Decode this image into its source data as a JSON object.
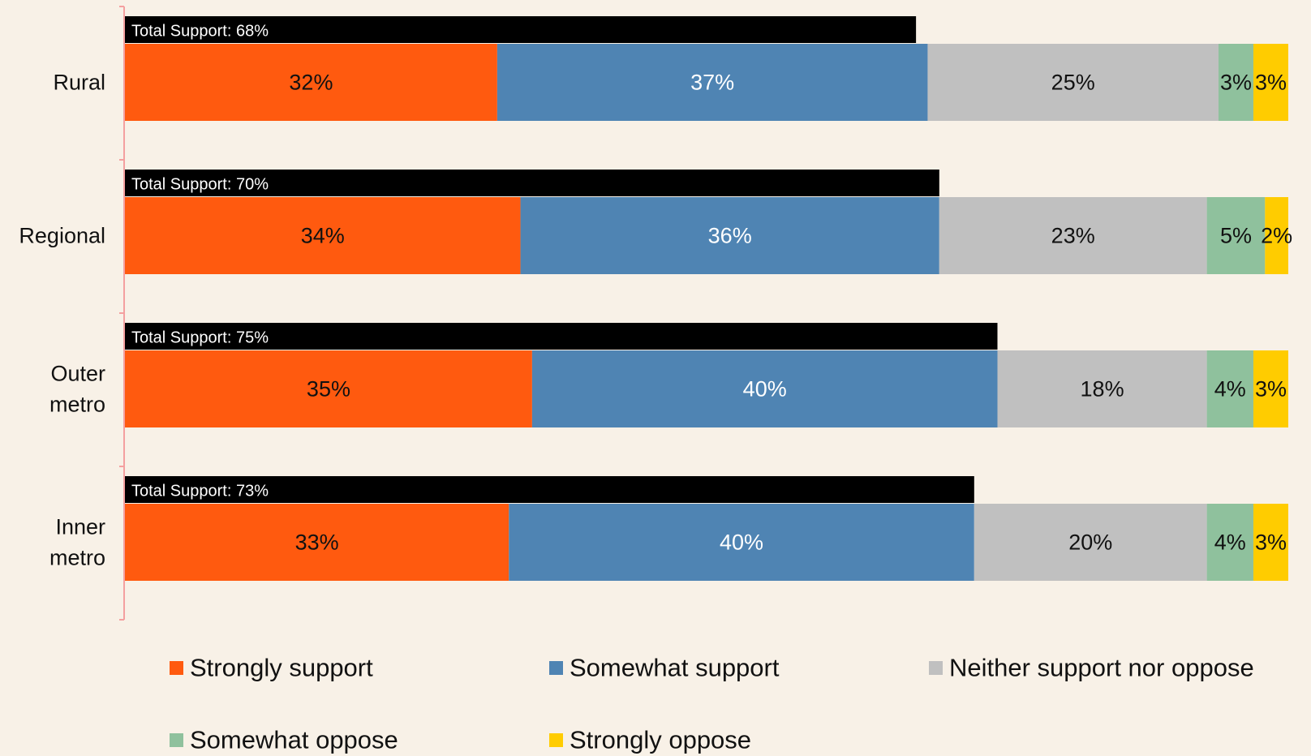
{
  "chart_data": {
    "type": "bar",
    "orientation": "horizontal",
    "stacked": true,
    "unit": "%",
    "categories": [
      "Rural",
      "Regional",
      "Outer metro",
      "Inner metro"
    ],
    "category_lines": [
      [
        "Rural"
      ],
      [
        "Regional"
      ],
      [
        "Outer",
        "metro"
      ],
      [
        "Inner",
        "metro"
      ]
    ],
    "series": [
      {
        "name": "Strongly support",
        "color": "#ff5a0f",
        "label_color": "#111111",
        "values": [
          32,
          34,
          35,
          33
        ]
      },
      {
        "name": "Somewhat support",
        "color": "#4f84b3",
        "label_color": "#ffffff",
        "values": [
          37,
          36,
          40,
          40
        ]
      },
      {
        "name": "Neither support nor oppose",
        "color": "#c0c0c0",
        "label_color": "#111111",
        "values": [
          25,
          23,
          18,
          20
        ]
      },
      {
        "name": "Somewhat oppose",
        "color": "#8fc19d",
        "label_color": "#111111",
        "values": [
          3,
          5,
          4,
          4
        ]
      },
      {
        "name": "Strongly oppose",
        "color": "#ffcc00",
        "label_color": "#111111",
        "values": [
          3,
          2,
          3,
          3
        ]
      }
    ],
    "totals": {
      "label_prefix": "Total Support:",
      "values": [
        68,
        70,
        75,
        73
      ],
      "color": "#000000"
    },
    "xlim": [
      0,
      100
    ],
    "grid": false,
    "legend_position": "bottom",
    "axis_color": "#f4a0a0"
  }
}
